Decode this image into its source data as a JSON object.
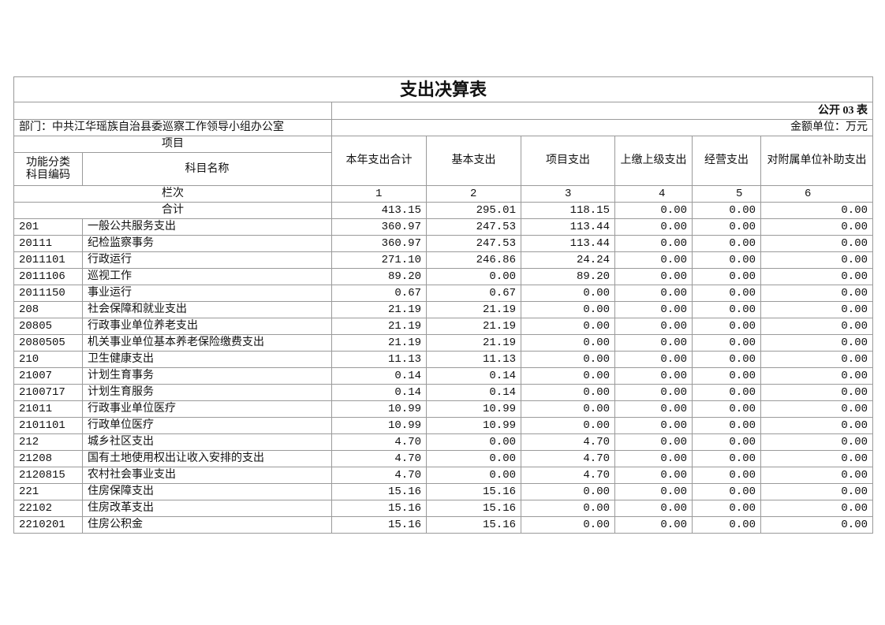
{
  "title": "支出决算表",
  "code": "公开 03 表",
  "department": "部门：中共江华瑶族自治县委巡察工作领导小组办公室",
  "unit": "金额单位：万元",
  "header": {
    "item": "项目",
    "code_lines": [
      "功能分类",
      "科目编码"
    ],
    "name": "科目名称",
    "columns": [
      "本年支出合计",
      "基本支出",
      "项目支出",
      "上缴上级支出",
      "经营支出",
      "对附属单位补助支出"
    ]
  },
  "column_numbers": {
    "label": "栏次",
    "numbers": [
      1,
      2,
      3,
      4,
      5,
      6
    ]
  },
  "total": {
    "label": "合计",
    "values": [
      "413.15",
      "295.01",
      "118.15",
      "0.00",
      "0.00",
      "0.00"
    ]
  },
  "rows": [
    [
      "201",
      "一般公共服务支出",
      "360.97",
      "247.53",
      "113.44",
      "0.00",
      "0.00",
      "0.00"
    ],
    [
      "20111",
      "纪检监察事务",
      "360.97",
      "247.53",
      "113.44",
      "0.00",
      "0.00",
      "0.00"
    ],
    [
      "2011101",
      "行政运行",
      "271.10",
      "246.86",
      "24.24",
      "0.00",
      "0.00",
      "0.00"
    ],
    [
      "2011106",
      "巡视工作",
      "89.20",
      "0.00",
      "89.20",
      "0.00",
      "0.00",
      "0.00"
    ],
    [
      "2011150",
      "事业运行",
      "0.67",
      "0.67",
      "0.00",
      "0.00",
      "0.00",
      "0.00"
    ],
    [
      "208",
      "社会保障和就业支出",
      "21.19",
      "21.19",
      "0.00",
      "0.00",
      "0.00",
      "0.00"
    ],
    [
      "20805",
      "行政事业单位养老支出",
      "21.19",
      "21.19",
      "0.00",
      "0.00",
      "0.00",
      "0.00"
    ],
    [
      "2080505",
      "机关事业单位基本养老保险缴费支出",
      "21.19",
      "21.19",
      "0.00",
      "0.00",
      "0.00",
      "0.00"
    ],
    [
      "210",
      "卫生健康支出",
      "11.13",
      "11.13",
      "0.00",
      "0.00",
      "0.00",
      "0.00"
    ],
    [
      "21007",
      "计划生育事务",
      "0.14",
      "0.14",
      "0.00",
      "0.00",
      "0.00",
      "0.00"
    ],
    [
      "2100717",
      "计划生育服务",
      "0.14",
      "0.14",
      "0.00",
      "0.00",
      "0.00",
      "0.00"
    ],
    [
      "21011",
      "行政事业单位医疗",
      "10.99",
      "10.99",
      "0.00",
      "0.00",
      "0.00",
      "0.00"
    ],
    [
      "2101101",
      "行政单位医疗",
      "10.99",
      "10.99",
      "0.00",
      "0.00",
      "0.00",
      "0.00"
    ],
    [
      "212",
      "城乡社区支出",
      "4.70",
      "0.00",
      "4.70",
      "0.00",
      "0.00",
      "0.00"
    ],
    [
      "21208",
      "国有土地使用权出让收入安排的支出",
      "4.70",
      "0.00",
      "4.70",
      "0.00",
      "0.00",
      "0.00"
    ],
    [
      "2120815",
      "农村社会事业支出",
      "4.70",
      "0.00",
      "4.70",
      "0.00",
      "0.00",
      "0.00"
    ],
    [
      "221",
      "住房保障支出",
      "15.16",
      "15.16",
      "0.00",
      "0.00",
      "0.00",
      "0.00"
    ],
    [
      "22102",
      "住房改革支出",
      "15.16",
      "15.16",
      "0.00",
      "0.00",
      "0.00",
      "0.00"
    ],
    [
      "2210201",
      "住房公积金",
      "15.16",
      "15.16",
      "0.00",
      "0.00",
      "0.00",
      "0.00"
    ]
  ]
}
